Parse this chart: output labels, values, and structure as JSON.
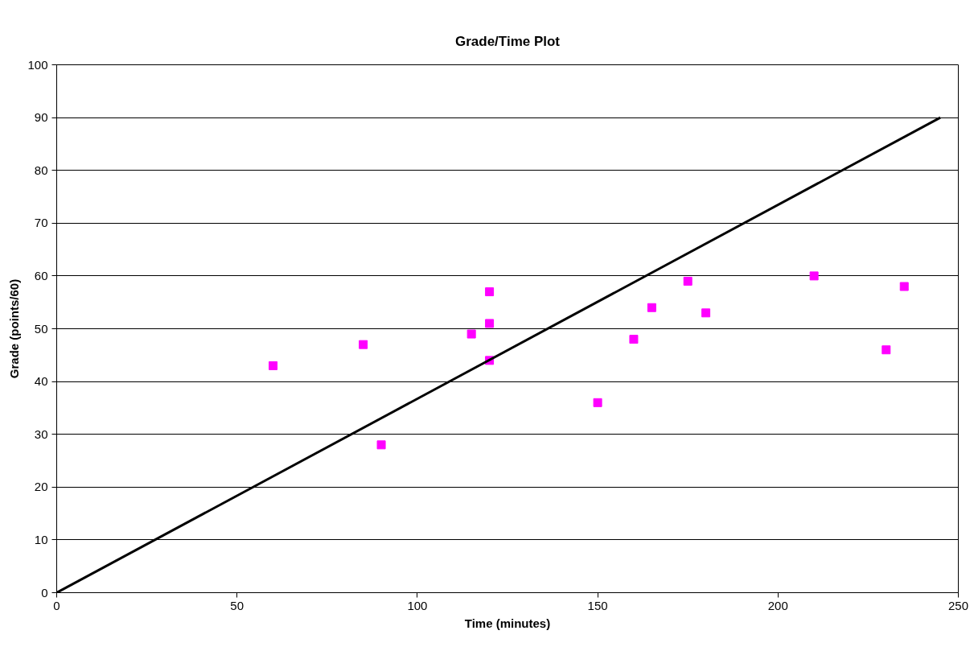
{
  "chart_data": {
    "type": "scatter",
    "title": "Grade/Time Plot",
    "xlabel": "Time (minutes)",
    "ylabel": "Grade (points/60)",
    "xlim": [
      0,
      250
    ],
    "xticks": [
      0,
      50,
      100,
      150,
      200,
      250
    ],
    "ylim": [
      0,
      100
    ],
    "yticks": [
      0,
      10,
      20,
      30,
      40,
      50,
      60,
      70,
      80,
      90,
      100
    ],
    "grid": "y",
    "series": [
      {
        "color": "#ff00ff",
        "marker": "square",
        "x": [
          60,
          85,
          90,
          115,
          120,
          120,
          120,
          150,
          160,
          165,
          175,
          180,
          210,
          230,
          235
        ],
        "values": [
          43,
          47,
          28,
          49,
          57,
          51,
          44,
          36,
          48,
          54,
          59,
          53,
          60,
          46,
          58
        ]
      },
      {
        "type": "line",
        "color": "#000000",
        "x": [
          0,
          245
        ],
        "values": [
          0,
          90
        ]
      }
    ]
  }
}
